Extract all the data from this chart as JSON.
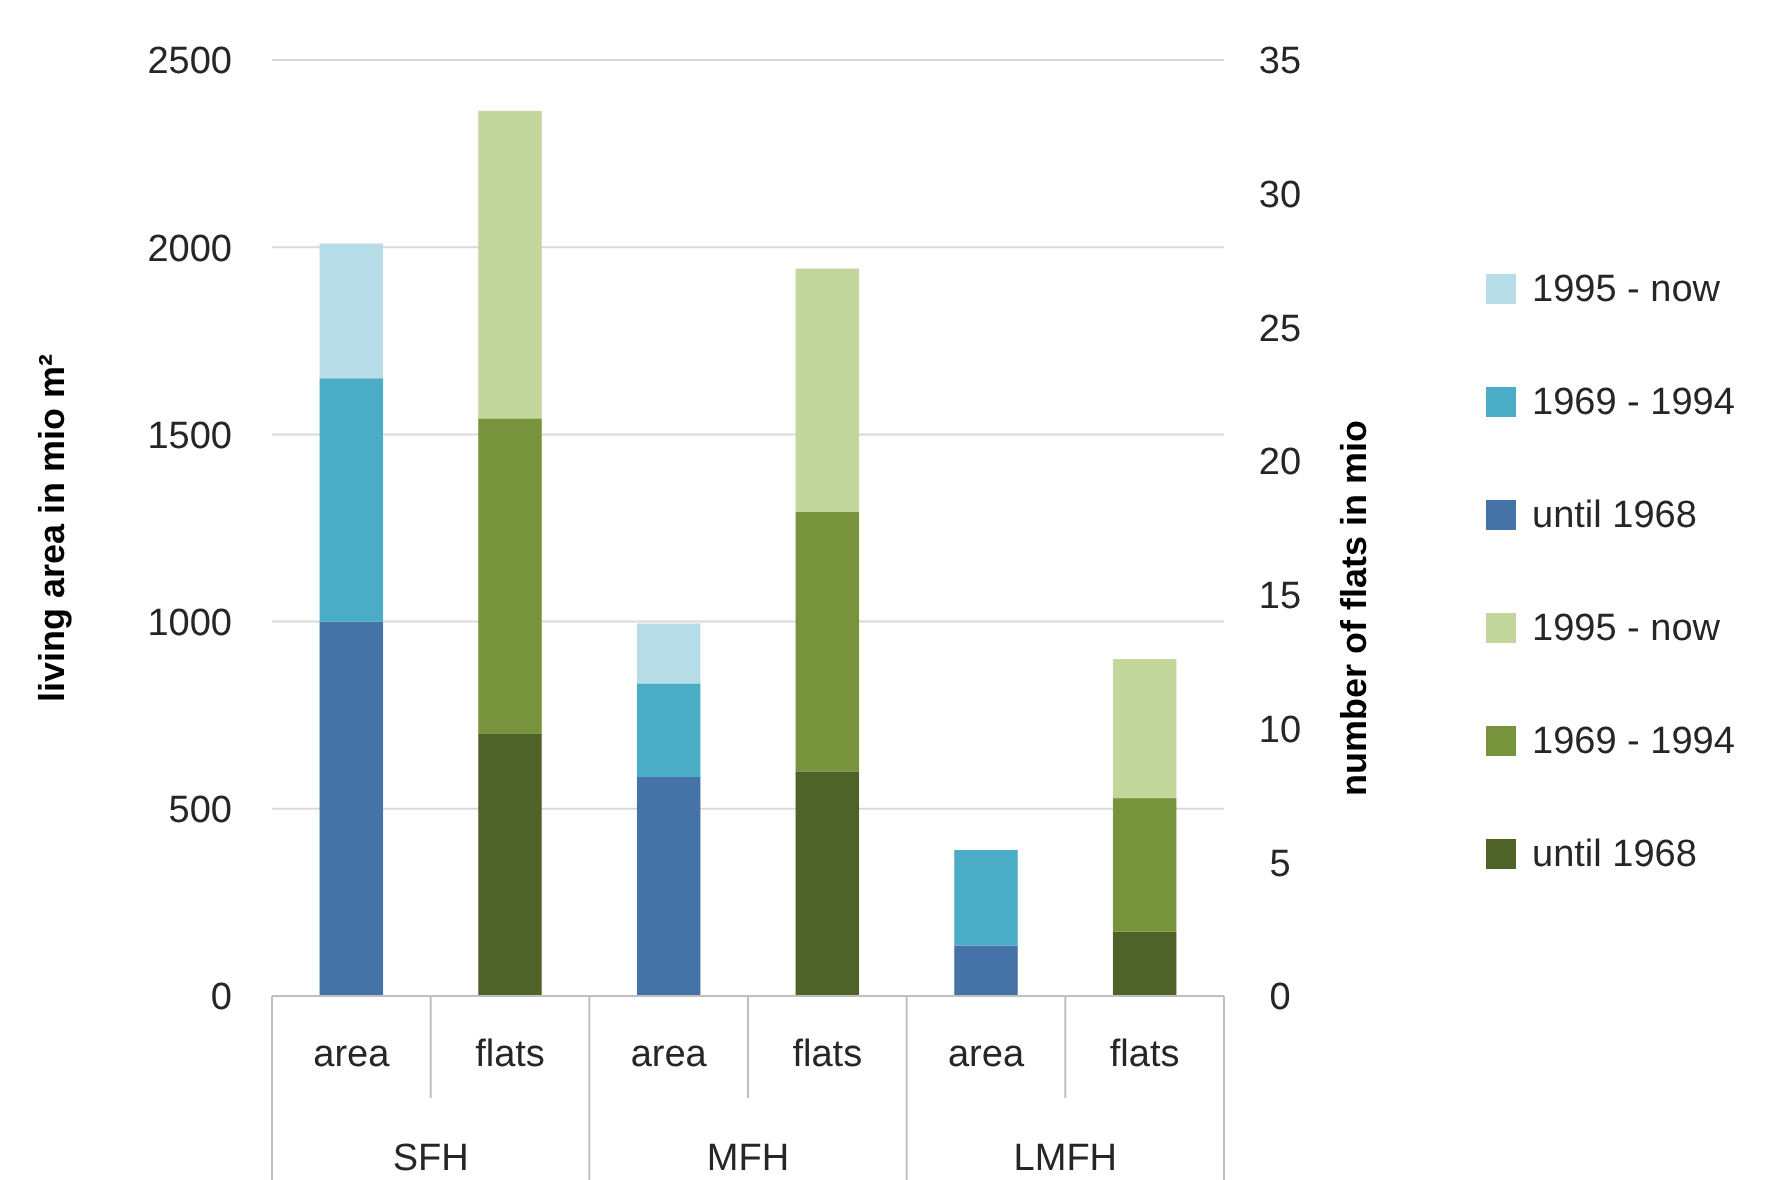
{
  "chart_data": {
    "type": "bar",
    "stacked": true,
    "ylabel": "living area in mio m²",
    "y2label": "number of flats in mio",
    "categories": [
      "area",
      "flats",
      "area",
      "flats",
      "area",
      "flats"
    ],
    "annotations": [
      "SFH",
      "MFH",
      "LMFH"
    ],
    "series": [
      {
        "name": "until 1968",
        "color": "#4572a7",
        "values": [
          1000,
          null,
          585,
          null,
          135,
          null
        ]
      },
      {
        "name": "1969 - 1994",
        "color": "#4bacc6",
        "values": [
          650,
          null,
          250,
          null,
          255,
          null
        ]
      },
      {
        "name": "1995 - now",
        "color": "#b7dde8",
        "values": [
          360,
          null,
          160,
          null,
          null,
          null
        ]
      },
      {
        "name": "until 1968",
        "color": "#4f6228",
        "axis": "y2",
        "values": [
          null,
          9.8,
          null,
          8.4,
          null,
          2.4
        ]
      },
      {
        "name": "1969 - 1994",
        "color": "#77933c",
        "axis": "y2",
        "values": [
          null,
          11.8,
          null,
          9.7,
          null,
          5.0
        ]
      },
      {
        "name": "1995 - now",
        "color": "#c3d69b",
        "axis": "y2",
        "values": [
          null,
          11.5,
          null,
          9.1,
          null,
          5.2
        ]
      }
    ],
    "ylim": [
      0,
      2500
    ],
    "yticks": [
      0,
      500,
      1000,
      1500,
      2000,
      2500
    ],
    "y2lim": [
      0,
      35
    ],
    "y2ticks": [
      0,
      5,
      10,
      15,
      20,
      25,
      30,
      35
    ],
    "grid": "y",
    "legend": "right"
  }
}
